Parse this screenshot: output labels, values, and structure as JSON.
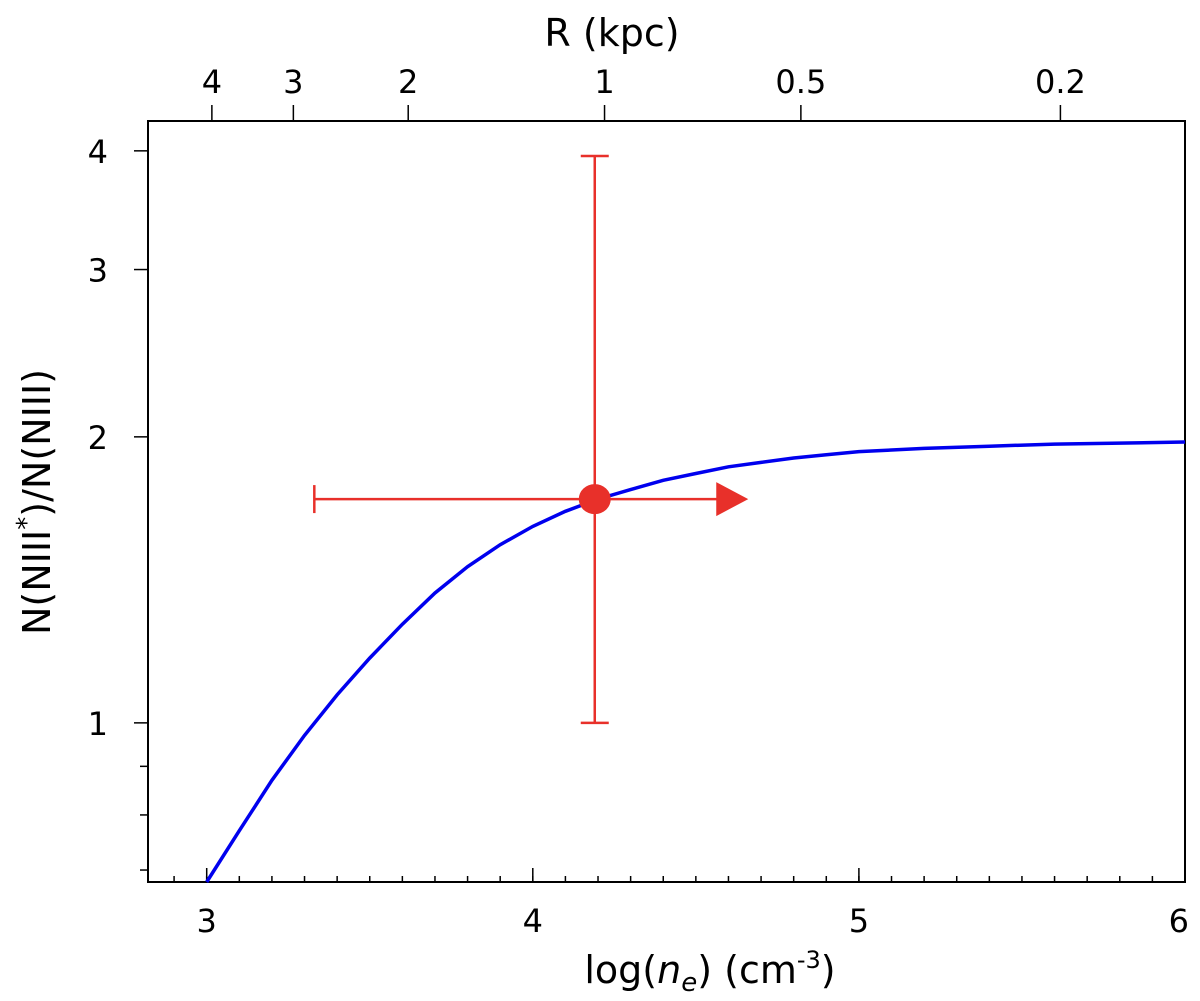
{
  "chart_data": {
    "type": "scatter",
    "x_axis": {
      "label_prefix": "log(",
      "label_var": "n",
      "label_sub": "e",
      "label_mid": ") (cm",
      "label_sup": "-3",
      "label_suffix": ")",
      "range": [
        2.82,
        6.0
      ],
      "ticks": [
        {
          "value": 3,
          "label": "3"
        },
        {
          "value": 4,
          "label": "4"
        },
        {
          "value": 5,
          "label": "5"
        },
        {
          "value": 6,
          "label": "6"
        }
      ],
      "minor_step": 0.1
    },
    "y_axis": {
      "label_prefix": "N(NIII",
      "label_sup": "*",
      "label_suffix": ")/N(NIII)",
      "scale": "log",
      "range": [
        0.68,
        4.3
      ],
      "ticks": [
        {
          "value": 1,
          "label": "1"
        },
        {
          "value": 2,
          "label": "2"
        },
        {
          "value": 3,
          "label": "3"
        },
        {
          "value": 4,
          "label": "4"
        }
      ],
      "minor_ticks": [
        0.7,
        0.8,
        0.9
      ]
    },
    "top_axis": {
      "label": "R (kpc)",
      "ticks": [
        {
          "value": 4,
          "label": "4"
        },
        {
          "value": 3,
          "label": "3"
        },
        {
          "value": 2,
          "label": "2"
        },
        {
          "value": 1,
          "label": "1"
        },
        {
          "value": 0.5,
          "label": "0.5"
        },
        {
          "value": 0.2,
          "label": "0.2"
        }
      ],
      "log_ne_at_R1": 4.22
    },
    "curve": {
      "color": "#0000ee",
      "points": [
        [
          3.0,
          0.68
        ],
        [
          3.1,
          0.77
        ],
        [
          3.2,
          0.87
        ],
        [
          3.3,
          0.97
        ],
        [
          3.4,
          1.07
        ],
        [
          3.5,
          1.17
        ],
        [
          3.6,
          1.27
        ],
        [
          3.7,
          1.37
        ],
        [
          3.8,
          1.46
        ],
        [
          3.9,
          1.54
        ],
        [
          4.0,
          1.61
        ],
        [
          4.1,
          1.67
        ],
        [
          4.2,
          1.72
        ],
        [
          4.3,
          1.76
        ],
        [
          4.4,
          1.8
        ],
        [
          4.5,
          1.83
        ],
        [
          4.6,
          1.86
        ],
        [
          4.7,
          1.88
        ],
        [
          4.8,
          1.9
        ],
        [
          4.9,
          1.915
        ],
        [
          5.0,
          1.93
        ],
        [
          5.2,
          1.945
        ],
        [
          5.4,
          1.955
        ],
        [
          5.6,
          1.965
        ],
        [
          5.8,
          1.97
        ],
        [
          6.0,
          1.975
        ]
      ]
    },
    "measurement": {
      "color": "#e8302a",
      "x": 4.19,
      "y": 1.72,
      "x_err_low": 3.33,
      "x_lower_limit_arrow_to": 4.63,
      "y_err_low": 1.0,
      "y_err_high": 3.95
    }
  }
}
